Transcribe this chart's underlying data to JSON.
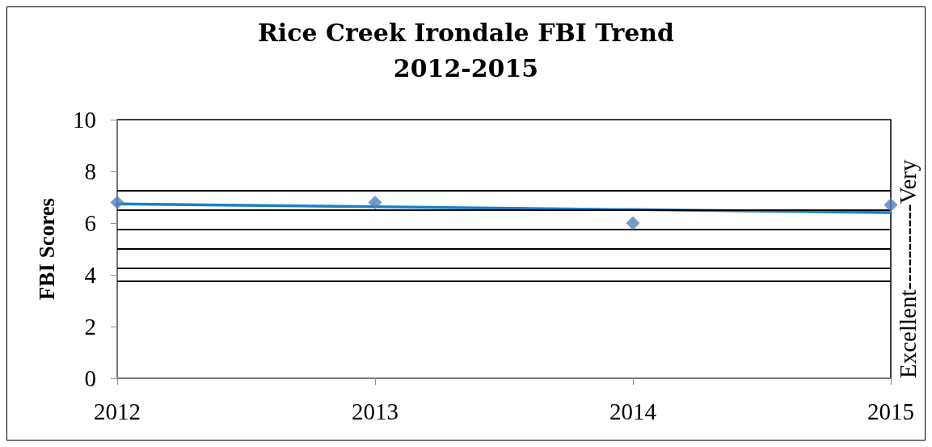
{
  "chart_data": {
    "type": "scatter",
    "title": "Rice Creek Irondale FBI Trend\n2012-2015",
    "ylabel": "FBI Scores",
    "categories": [
      "2012",
      "2013",
      "2014",
      "2015"
    ],
    "series": [
      {
        "color": "#4f81bd",
        "values": [
          6.8,
          6.8,
          6.0,
          6.7
        ]
      },
      {
        "type": "line",
        "color": "#1a80c8",
        "marker": "none",
        "values": [
          6.74,
          6.63,
          6.52,
          6.41
        ]
      }
    ],
    "marker": "diamond",
    "ylim": [
      0,
      10
    ],
    "yticks": [
      0,
      2,
      4,
      6,
      8,
      10
    ],
    "grid": false,
    "ref_lines": [
      {
        "axis": "y",
        "value": 3.75,
        "color": "#000000"
      },
      {
        "axis": "y",
        "value": 4.25,
        "color": "#000000"
      },
      {
        "axis": "y",
        "value": 5.0,
        "color": "#000000"
      },
      {
        "axis": "y",
        "value": 5.75,
        "color": "#000000"
      },
      {
        "axis": "y",
        "value": 6.5,
        "color": "#000000"
      },
      {
        "axis": "y",
        "value": 7.25,
        "color": "#000000"
      }
    ],
    "annotations": [
      "Excellent-----------Very"
    ]
  }
}
